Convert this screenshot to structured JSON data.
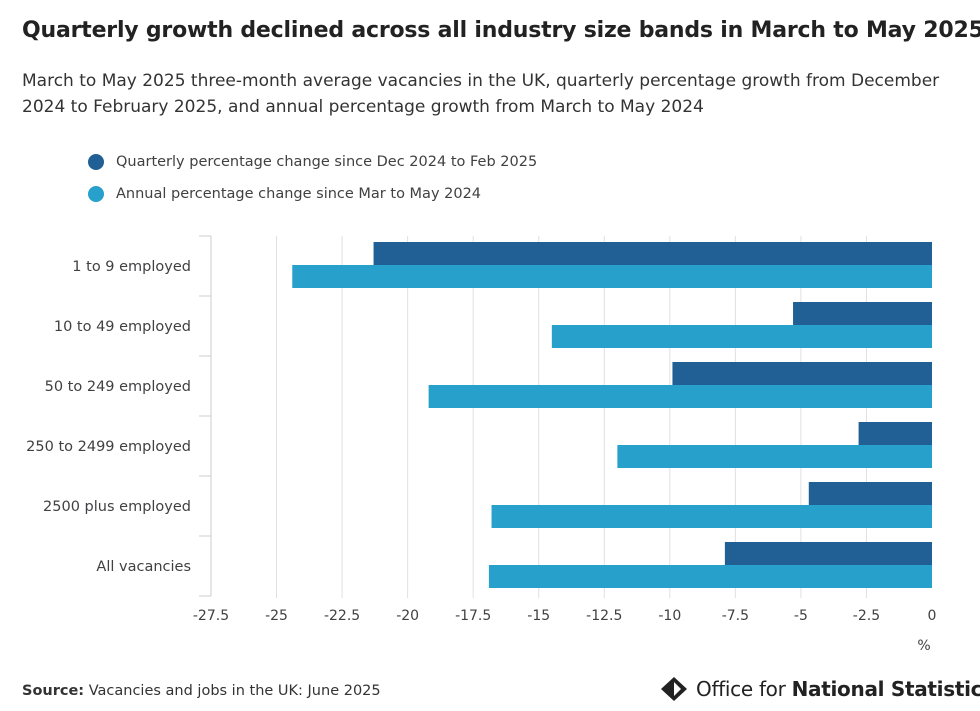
{
  "title": "Quarterly growth declined across all industry size bands in March to May 2025",
  "subtitle": "March to May 2025 three-month average vacancies in the UK, quarterly percentage growth from December 2024 to February 2025, and annual percentage growth from March to May 2024",
  "colors": {
    "quarterly": "#206095",
    "annual": "#27a0cc",
    "grid": "#e0e0e0",
    "text": "#414042"
  },
  "chart_data": {
    "type": "bar",
    "orientation": "horizontal",
    "categories": [
      "1 to 9 employed",
      "10 to 49 employed",
      "50 to 249 employed",
      "250 to 2499 employed",
      "2500 plus employed",
      "All vacancies"
    ],
    "series": [
      {
        "name": "Quarterly percentage change since Dec 2024 to Feb 2025",
        "color": "#206095",
        "values": [
          -21.3,
          -5.3,
          -9.9,
          -2.8,
          -4.7,
          -7.9
        ]
      },
      {
        "name": "Annual percentage change since Mar to May 2024",
        "color": "#27a0cc",
        "values": [
          -24.4,
          -14.5,
          -19.2,
          -12.0,
          -16.8,
          -16.9
        ]
      }
    ],
    "xlim": [
      -27.5,
      0
    ],
    "xticks": [
      -27.5,
      -25,
      -22.5,
      -20,
      -17.5,
      -15,
      -12.5,
      -10,
      -7.5,
      -5,
      -2.5,
      0
    ],
    "tick_labels": [
      "-27.5",
      "-25",
      "-22.5",
      "-20",
      "-17.5",
      "-15",
      "-12.5",
      "-10",
      "-7.5",
      "-5",
      "-2.5",
      "0"
    ],
    "xlabel": "%",
    "legend_position": "top-left"
  },
  "source": {
    "label": "Source:",
    "text": " Vacancies and jobs in the UK: June 2025"
  },
  "logo": {
    "light": "Office for ",
    "bold": "National Statistics"
  }
}
